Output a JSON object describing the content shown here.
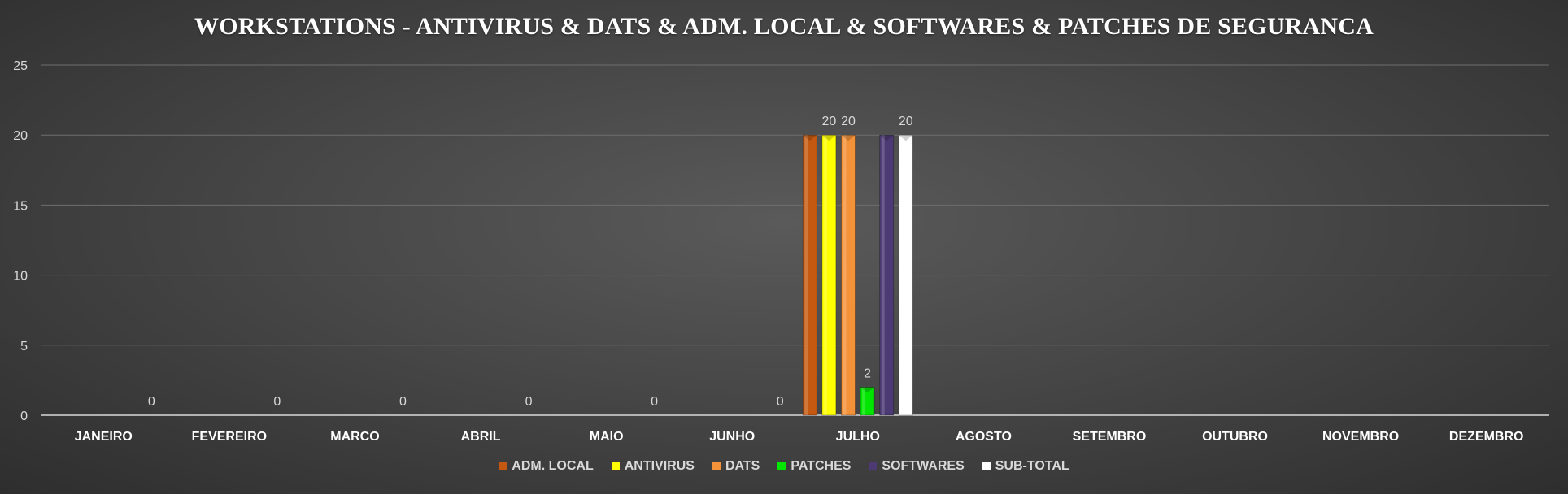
{
  "chart_data": {
    "type": "bar",
    "title": "WORKSTATIONS - ANTIVIRUS & DATS & ADM. LOCAL & SOFTWARES & PATCHES DE SEGURANCA",
    "xlabel": "",
    "ylabel": "",
    "ylim": [
      0,
      25
    ],
    "yticks": [
      0,
      5,
      10,
      15,
      20,
      25
    ],
    "grid": true,
    "legend_position": "bottom",
    "categories": [
      "JANEIRO",
      "FEVEREIRO",
      "MARCO",
      "ABRIL",
      "MAIO",
      "JUNHO",
      "JULHO",
      "AGOSTO",
      "SETEMBRO",
      "OUTUBRO",
      "NOVEMBRO",
      "DEZEMBRO"
    ],
    "series": [
      {
        "name": "ADM. LOCAL",
        "color": "#c65911",
        "values": [
          null,
          null,
          null,
          null,
          null,
          null,
          20,
          null,
          null,
          null,
          null,
          null
        ],
        "labels": [
          null,
          null,
          null,
          null,
          null,
          null,
          null,
          null,
          null,
          null,
          null,
          null
        ]
      },
      {
        "name": "ANTIVIRUS",
        "color": "#ffff00",
        "values": [
          null,
          null,
          null,
          null,
          null,
          null,
          20,
          null,
          null,
          null,
          null,
          null
        ],
        "labels": [
          null,
          null,
          null,
          null,
          null,
          null,
          "20",
          null,
          null,
          null,
          null,
          null
        ]
      },
      {
        "name": "DATS",
        "color": "#f4923a",
        "values": [
          null,
          null,
          null,
          null,
          null,
          null,
          20,
          null,
          null,
          null,
          null,
          null
        ],
        "labels": [
          null,
          null,
          null,
          null,
          null,
          null,
          "20",
          null,
          null,
          null,
          null,
          null
        ]
      },
      {
        "name": "PATCHES",
        "color": "#00e600",
        "values": [
          null,
          null,
          null,
          null,
          null,
          null,
          2,
          null,
          null,
          null,
          null,
          null
        ],
        "labels": [
          null,
          null,
          null,
          null,
          null,
          null,
          "2",
          null,
          null,
          null,
          null,
          null
        ]
      },
      {
        "name": "SOFTWARES",
        "color": "#4b3a73",
        "values": [
          null,
          null,
          null,
          null,
          null,
          null,
          20,
          null,
          null,
          null,
          null,
          null
        ],
        "labels": [
          null,
          null,
          null,
          null,
          null,
          null,
          null,
          null,
          null,
          null,
          null,
          null
        ]
      },
      {
        "name": "SUB-TOTAL",
        "color": "#ffffff",
        "values": [
          0,
          0,
          0,
          0,
          0,
          0,
          20,
          null,
          null,
          null,
          null,
          null
        ],
        "labels": [
          "0",
          "0",
          "0",
          "0",
          "0",
          "0",
          "20",
          null,
          null,
          null,
          null,
          null
        ]
      }
    ]
  }
}
